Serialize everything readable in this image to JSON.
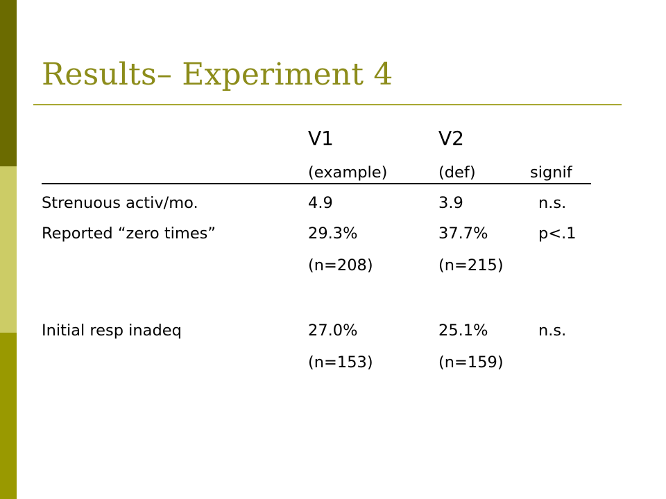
{
  "slide": {
    "title": "Results– Experiment 4"
  },
  "table": {
    "columns": {
      "v1": {
        "label": "V1",
        "sub": "(example)"
      },
      "v2": {
        "label": "V2",
        "sub": "(def)"
      },
      "signif": {
        "label": "signif"
      }
    },
    "rows": [
      {
        "label": "Strenuous activ/mo.",
        "v1": "4.9",
        "v2": "3.9",
        "signif": "n.s."
      },
      {
        "label": "Reported “zero times”",
        "v1": "29.3%",
        "v2": "37.7%",
        "signif": "p<.1",
        "v1_n": "(n=208)",
        "v2_n": "(n=215)"
      },
      {
        "label": "Initial resp inadeq",
        "v1": "27.0%",
        "v2": "25.1%",
        "signif": "n.s.",
        "v1_n": "(n=153)",
        "v2_n": "(n=159)"
      }
    ]
  },
  "colors": {
    "title": "#8c8c1a",
    "rule": "#a8a832",
    "sidebar_dark": "#6b6b00",
    "sidebar_light": "#cccc66",
    "sidebar_mid": "#999900"
  }
}
